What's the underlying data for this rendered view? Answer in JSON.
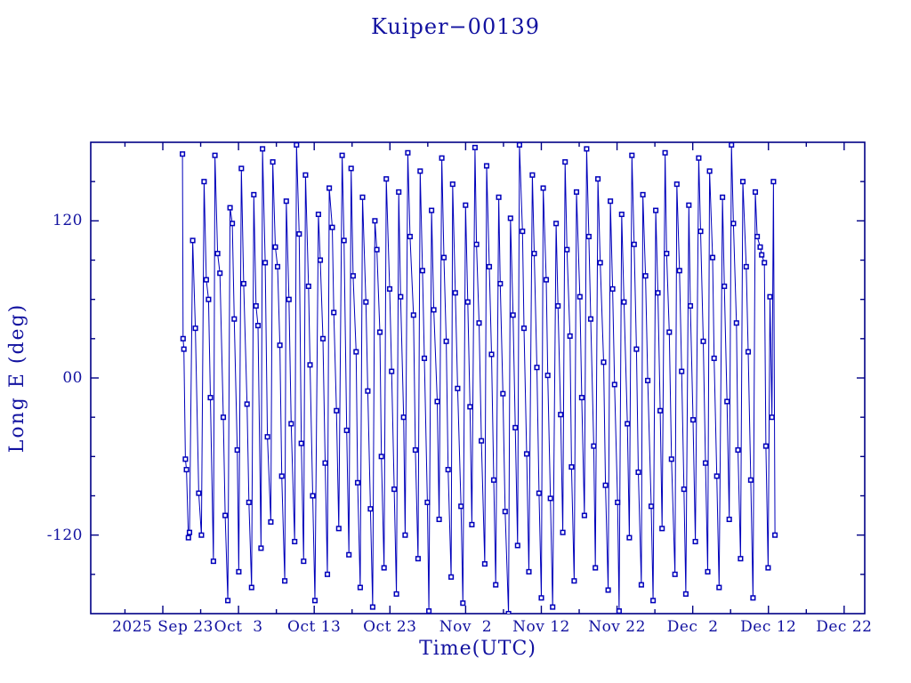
{
  "page": {
    "background": "#ffffff"
  },
  "chart_data": {
    "type": "line",
    "title": "Kuiper−00139",
    "xlabel": "Time(UTC)",
    "ylabel": "Long E (deg)",
    "grid": false,
    "legend": null,
    "marker": "open-square",
    "x_unit": "days relative to 2025 Sep 23 (UTC)",
    "x_range": [
      -9.52,
      92.72
    ],
    "y_range": [
      -180,
      180
    ],
    "x_major_ticks": [
      {
        "day": 0,
        "label": "2025 Sep 23"
      },
      {
        "day": 10,
        "label": "Oct  3"
      },
      {
        "day": 20,
        "label": "Oct 13"
      },
      {
        "day": 30,
        "label": "Oct 23"
      },
      {
        "day": 40,
        "label": "Nov  2"
      },
      {
        "day": 50,
        "label": "Nov 12"
      },
      {
        "day": 60,
        "label": "Nov 22"
      },
      {
        "day": 70,
        "label": "Dec  2"
      },
      {
        "day": 80,
        "label": "Dec 12"
      },
      {
        "day": 90,
        "label": "Dec 22"
      }
    ],
    "x_minor_tick_days": [
      -5,
      5,
      15,
      25,
      35,
      45,
      55,
      65,
      75,
      85
    ],
    "y_major_ticks": [
      {
        "value": 120,
        "label": "120"
      },
      {
        "value": 0,
        "label": "00"
      },
      {
        "value": -120,
        "label": "-120"
      }
    ],
    "y_minor_tick_values": [
      -150,
      -90,
      -60,
      -30,
      30,
      60,
      90,
      150
    ],
    "colors": {
      "line": "#0000bb",
      "marker_fill": "#ffffff",
      "axis": "#000085",
      "text": "#1212a0"
    },
    "points": [
      [
        2.6,
        171
      ],
      [
        2.68,
        30
      ],
      [
        2.78,
        22
      ],
      [
        2.98,
        -62
      ],
      [
        3.12,
        -70
      ],
      [
        3.38,
        -122
      ],
      [
        3.52,
        -118
      ],
      [
        3.95,
        105
      ],
      [
        4.3,
        38
      ],
      [
        4.75,
        -88
      ],
      [
        5.1,
        -120
      ],
      [
        5.45,
        150
      ],
      [
        5.74,
        75
      ],
      [
        6.04,
        60
      ],
      [
        6.29,
        -15
      ],
      [
        6.69,
        -140
      ],
      [
        6.89,
        170
      ],
      [
        7.24,
        95
      ],
      [
        7.54,
        80
      ],
      [
        7.99,
        -30
      ],
      [
        8.24,
        -105
      ],
      [
        8.59,
        -170
      ],
      [
        8.88,
        130
      ],
      [
        9.18,
        118
      ],
      [
        9.43,
        45
      ],
      [
        9.83,
        -55
      ],
      [
        10.03,
        -148
      ],
      [
        10.38,
        160
      ],
      [
        10.68,
        72
      ],
      [
        11.13,
        -20
      ],
      [
        11.38,
        -95
      ],
      [
        11.73,
        -160
      ],
      [
        12.02,
        140
      ],
      [
        12.32,
        55
      ],
      [
        12.57,
        40
      ],
      [
        12.97,
        -130
      ],
      [
        13.17,
        175
      ],
      [
        13.52,
        88
      ],
      [
        13.82,
        -45
      ],
      [
        14.27,
        -110
      ],
      [
        14.52,
        165
      ],
      [
        14.87,
        100
      ],
      [
        15.16,
        85
      ],
      [
        15.46,
        25
      ],
      [
        15.71,
        -75
      ],
      [
        16.11,
        -155
      ],
      [
        16.31,
        135
      ],
      [
        16.66,
        60
      ],
      [
        16.96,
        -35
      ],
      [
        17.41,
        -125
      ],
      [
        17.66,
        178
      ],
      [
        18.01,
        110
      ],
      [
        18.3,
        -50
      ],
      [
        18.6,
        -140
      ],
      [
        18.85,
        155
      ],
      [
        19.25,
        70
      ],
      [
        19.45,
        10
      ],
      [
        19.8,
        -90
      ],
      [
        20.1,
        -170
      ],
      [
        20.55,
        125
      ],
      [
        20.8,
        90
      ],
      [
        21.15,
        30
      ],
      [
        21.44,
        -65
      ],
      [
        21.74,
        -150
      ],
      [
        21.99,
        145
      ],
      [
        22.39,
        115
      ],
      [
        22.59,
        50
      ],
      [
        22.94,
        -25
      ],
      [
        23.24,
        -115
      ],
      [
        23.69,
        170
      ],
      [
        23.94,
        105
      ],
      [
        24.29,
        -40
      ],
      [
        24.58,
        -135
      ],
      [
        24.88,
        160
      ],
      [
        25.13,
        78
      ],
      [
        25.53,
        20
      ],
      [
        25.73,
        -80
      ],
      [
        26.08,
        -160
      ],
      [
        26.38,
        138
      ],
      [
        26.83,
        58
      ],
      [
        27.08,
        -10
      ],
      [
        27.43,
        -100
      ],
      [
        27.72,
        -175
      ],
      [
        28.02,
        120
      ],
      [
        28.27,
        98
      ],
      [
        28.67,
        35
      ],
      [
        28.87,
        -60
      ],
      [
        29.22,
        -145
      ],
      [
        29.52,
        152
      ],
      [
        29.97,
        68
      ],
      [
        30.22,
        5
      ],
      [
        30.57,
        -85
      ],
      [
        30.86,
        -165
      ],
      [
        31.16,
        142
      ],
      [
        31.41,
        62
      ],
      [
        31.81,
        -30
      ],
      [
        32.01,
        -120
      ],
      [
        32.36,
        172
      ],
      [
        32.66,
        108
      ],
      [
        33.11,
        48
      ],
      [
        33.36,
        -55
      ],
      [
        33.71,
        -138
      ],
      [
        34.0,
        158
      ],
      [
        34.3,
        82
      ],
      [
        34.55,
        15
      ],
      [
        34.95,
        -95
      ],
      [
        35.15,
        -178
      ],
      [
        35.5,
        128
      ],
      [
        35.8,
        52
      ],
      [
        36.25,
        -18
      ],
      [
        36.5,
        -108
      ],
      [
        36.85,
        168
      ],
      [
        37.14,
        92
      ],
      [
        37.44,
        28
      ],
      [
        37.69,
        -70
      ],
      [
        38.09,
        -152
      ],
      [
        38.29,
        148
      ],
      [
        38.64,
        65
      ],
      [
        38.94,
        -8
      ],
      [
        39.39,
        -98
      ],
      [
        39.64,
        -172
      ],
      [
        39.99,
        132
      ],
      [
        40.28,
        58
      ],
      [
        40.58,
        -22
      ],
      [
        40.83,
        -112
      ],
      [
        41.23,
        176
      ],
      [
        41.43,
        102
      ],
      [
        41.78,
        42
      ],
      [
        42.08,
        -48
      ],
      [
        42.53,
        -142
      ],
      [
        42.78,
        162
      ],
      [
        43.13,
        85
      ],
      [
        43.42,
        18
      ],
      [
        43.72,
        -78
      ],
      [
        43.97,
        -158
      ],
      [
        44.37,
        138
      ],
      [
        44.57,
        72
      ],
      [
        44.92,
        -12
      ],
      [
        45.22,
        -102
      ],
      [
        45.67,
        -180
      ],
      [
        45.92,
        122
      ],
      [
        46.27,
        48
      ],
      [
        46.56,
        -38
      ],
      [
        46.86,
        -128
      ],
      [
        47.11,
        178
      ],
      [
        47.51,
        112
      ],
      [
        47.71,
        38
      ],
      [
        48.06,
        -58
      ],
      [
        48.36,
        -148
      ],
      [
        48.81,
        155
      ],
      [
        49.06,
        95
      ],
      [
        49.41,
        8
      ],
      [
        49.7,
        -88
      ],
      [
        50.0,
        -168
      ],
      [
        50.25,
        145
      ],
      [
        50.65,
        75
      ],
      [
        50.85,
        2
      ],
      [
        51.2,
        -92
      ],
      [
        51.5,
        -175
      ],
      [
        51.95,
        118
      ],
      [
        52.2,
        55
      ],
      [
        52.55,
        -28
      ],
      [
        52.84,
        -118
      ],
      [
        53.14,
        165
      ],
      [
        53.39,
        98
      ],
      [
        53.79,
        32
      ],
      [
        53.99,
        -68
      ],
      [
        54.34,
        -155
      ],
      [
        54.64,
        142
      ],
      [
        55.09,
        62
      ],
      [
        55.34,
        -15
      ],
      [
        55.69,
        -105
      ],
      [
        55.98,
        175
      ],
      [
        56.28,
        108
      ],
      [
        56.53,
        45
      ],
      [
        56.93,
        -52
      ],
      [
        57.13,
        -145
      ],
      [
        57.48,
        152
      ],
      [
        57.78,
        88
      ],
      [
        58.23,
        12
      ],
      [
        58.48,
        -82
      ],
      [
        58.83,
        -162
      ],
      [
        59.12,
        135
      ],
      [
        59.42,
        68
      ],
      [
        59.67,
        -5
      ],
      [
        60.07,
        -95
      ],
      [
        60.27,
        -178
      ],
      [
        60.62,
        125
      ],
      [
        60.92,
        58
      ],
      [
        61.37,
        -35
      ],
      [
        61.62,
        -122
      ],
      [
        61.97,
        170
      ],
      [
        62.26,
        102
      ],
      [
        62.56,
        22
      ],
      [
        62.81,
        -72
      ],
      [
        63.21,
        -158
      ],
      [
        63.41,
        140
      ],
      [
        63.76,
        78
      ],
      [
        64.06,
        -2
      ],
      [
        64.51,
        -98
      ],
      [
        64.76,
        -170
      ],
      [
        65.11,
        128
      ],
      [
        65.4,
        65
      ],
      [
        65.7,
        -25
      ],
      [
        65.95,
        -115
      ],
      [
        66.35,
        172
      ],
      [
        66.55,
        95
      ],
      [
        66.9,
        35
      ],
      [
        67.2,
        -62
      ],
      [
        67.65,
        -150
      ],
      [
        67.9,
        148
      ],
      [
        68.25,
        82
      ],
      [
        68.54,
        5
      ],
      [
        68.84,
        -85
      ],
      [
        69.09,
        -165
      ],
      [
        69.49,
        132
      ],
      [
        69.69,
        55
      ],
      [
        70.04,
        -32
      ],
      [
        70.34,
        -125
      ],
      [
        70.79,
        168
      ],
      [
        71.04,
        112
      ],
      [
        71.39,
        28
      ],
      [
        71.68,
        -65
      ],
      [
        71.98,
        -148
      ],
      [
        72.23,
        158
      ],
      [
        72.63,
        92
      ],
      [
        72.83,
        15
      ],
      [
        73.18,
        -75
      ],
      [
        73.48,
        -160
      ],
      [
        73.93,
        138
      ],
      [
        74.18,
        70
      ],
      [
        74.53,
        -18
      ],
      [
        74.82,
        -108
      ],
      [
        75.12,
        178
      ],
      [
        75.37,
        118
      ],
      [
        75.77,
        42
      ],
      [
        75.97,
        -55
      ],
      [
        76.32,
        -138
      ],
      [
        76.62,
        150
      ],
      [
        77.07,
        85
      ],
      [
        77.32,
        20
      ],
      [
        77.67,
        -78
      ],
      [
        77.96,
        -168
      ],
      [
        78.26,
        142
      ],
      [
        78.51,
        108
      ],
      [
        78.91,
        100
      ],
      [
        79.11,
        94
      ],
      [
        79.46,
        88
      ],
      [
        79.66,
        -52
      ],
      [
        79.96,
        -145
      ],
      [
        80.21,
        62
      ],
      [
        80.46,
        -30
      ],
      [
        80.66,
        150
      ],
      [
        80.86,
        -120
      ]
    ]
  }
}
